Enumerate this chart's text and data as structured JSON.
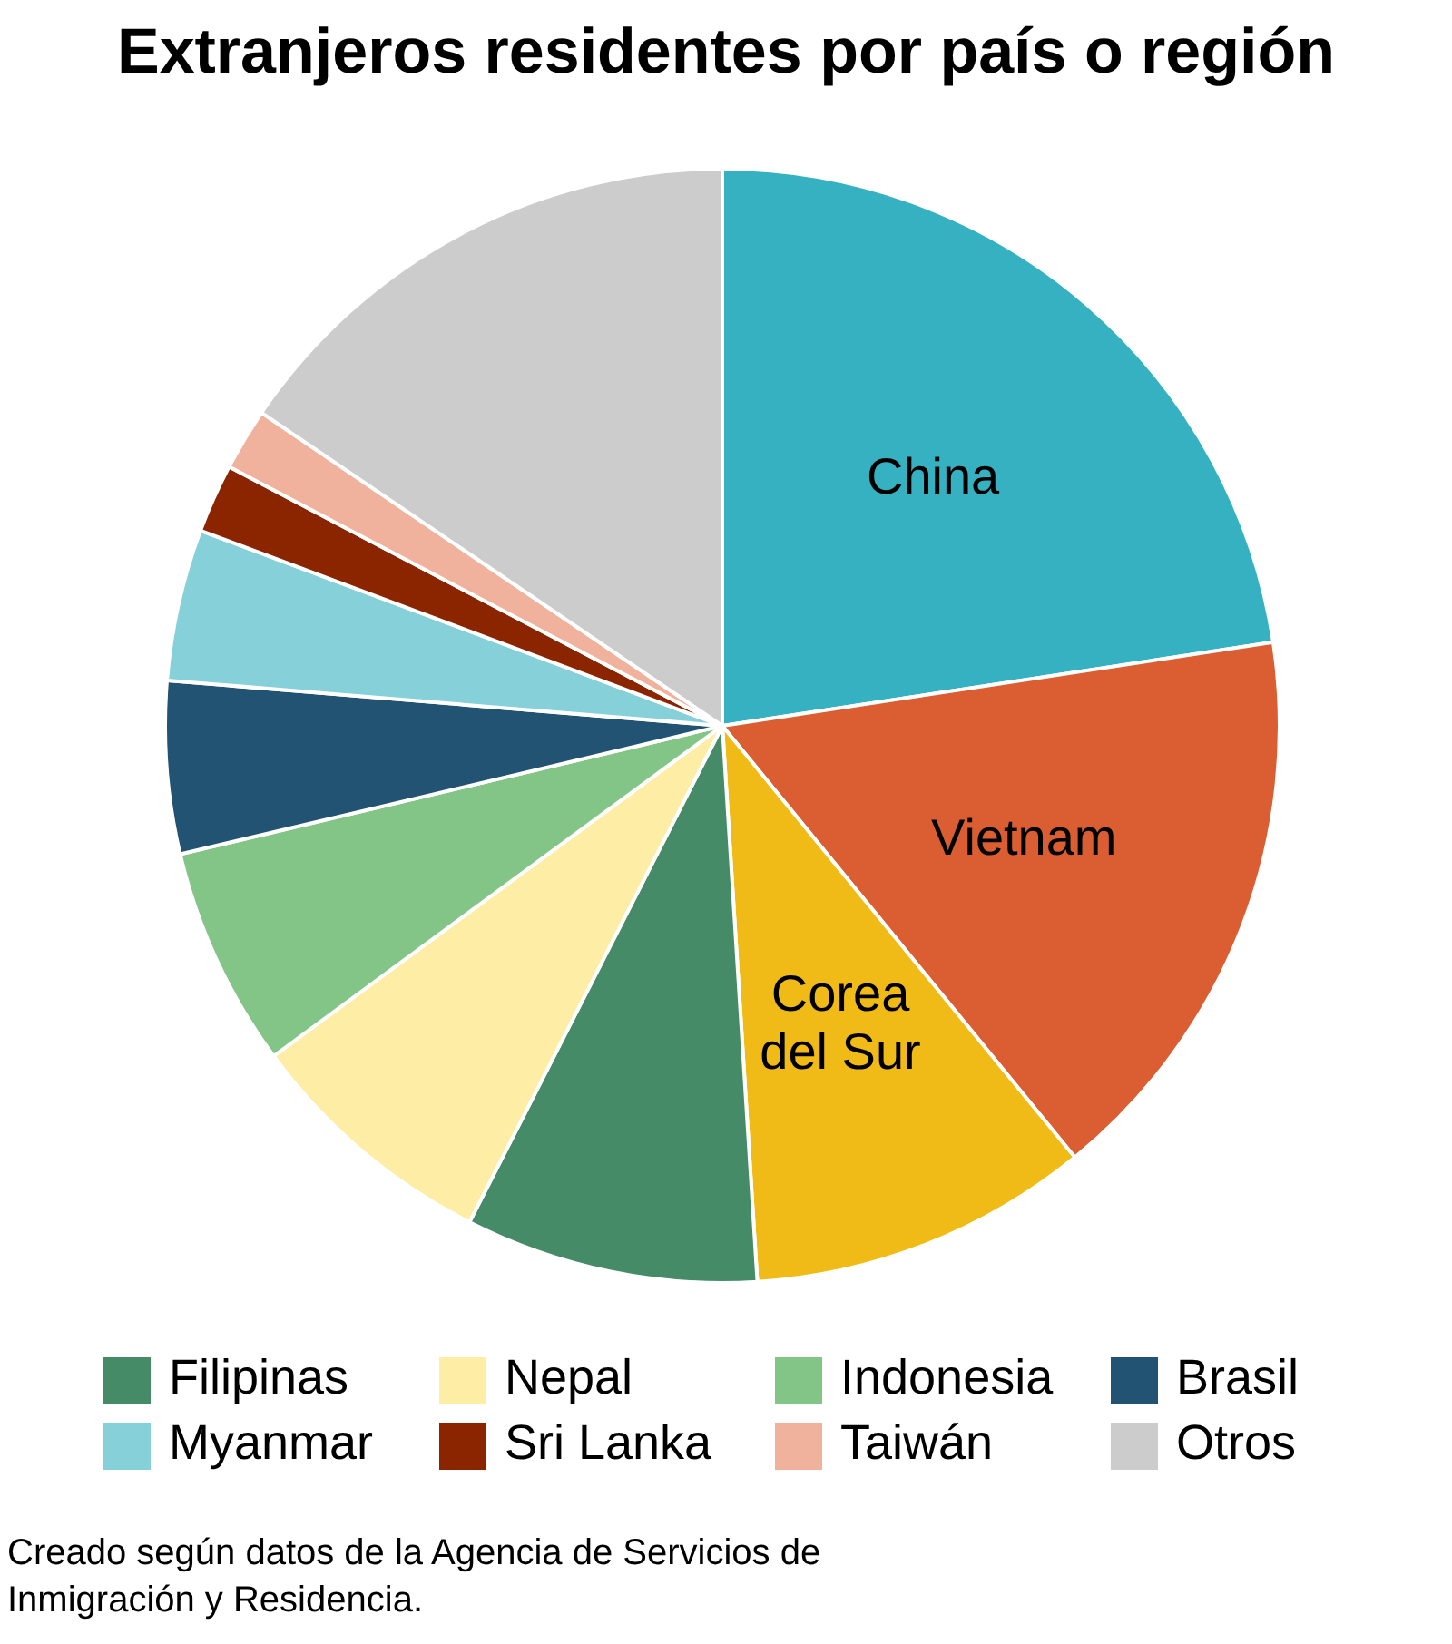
{
  "chart_data": {
    "type": "pie",
    "title": "Extranjeros residentes por país o región",
    "categories": [
      "China",
      "Vietnam",
      "Corea del Sur",
      "Filipinas",
      "Nepal",
      "Indonesia",
      "Brasil",
      "Myanmar",
      "Sri Lanka",
      "Taiwán",
      "Otros"
    ],
    "values": [
      22.6,
      16.5,
      9.9,
      8.5,
      7.4,
      6.4,
      5.0,
      4.4,
      2.0,
      1.8,
      15.5
    ],
    "colors": [
      "#35b1c1",
      "#db5e33",
      "#f0bb17",
      "#458b68",
      "#fdeda5",
      "#83c587",
      "#235373",
      "#86d0da",
      "#8b2500",
      "#f0b29c",
      "#cccccc"
    ],
    "legend": "bottom",
    "annotations": [
      "Creado según datos de la Agencia de Servicios de Inmigración y Residencia."
    ]
  }
}
